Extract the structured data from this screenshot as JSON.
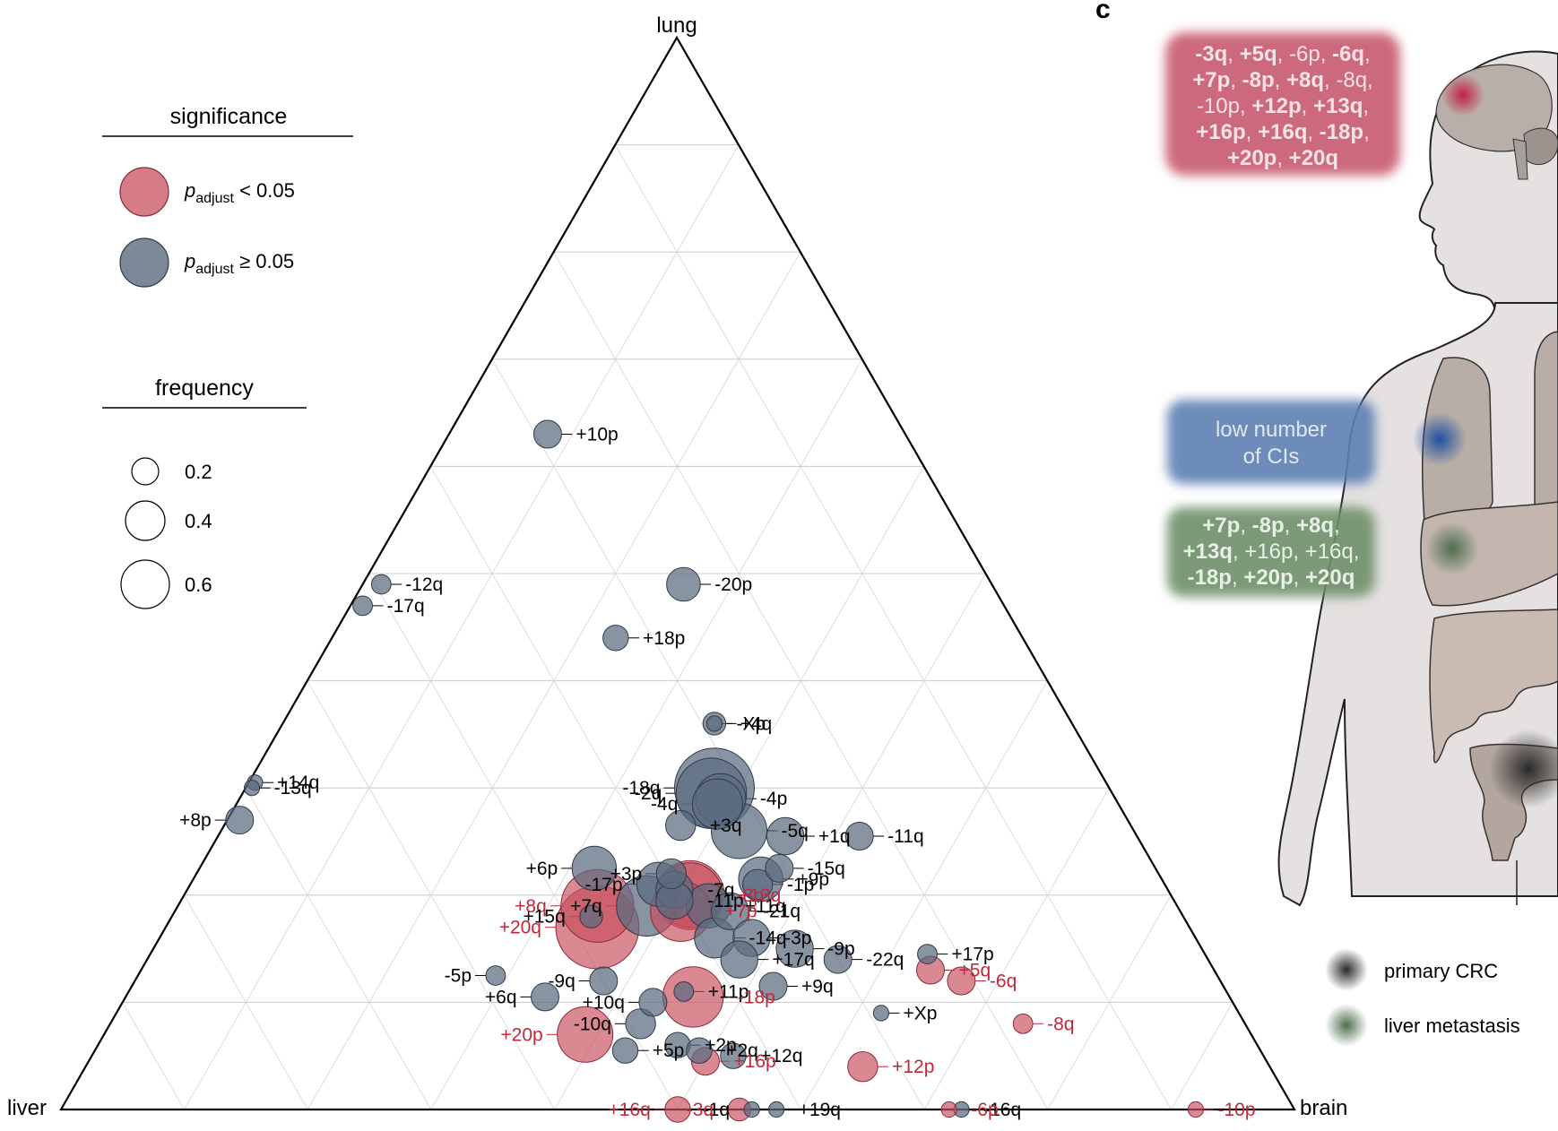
{
  "panel_letter": "c",
  "colors": {
    "significant": "#c8505f",
    "not_significant": "#5b6b80",
    "text_red": "#c0283c",
    "brain_box": "#c44f64",
    "lung_box": "#5d7fb2",
    "liver_box": "#6f8f6a"
  },
  "legend": {
    "significance_title": "significance",
    "sig_label_p": "p",
    "sig_label_sub": "adjust",
    "sig_lt": " < 0.05",
    "sig_ge": " ≥ 0.05",
    "frequency_title": "frequency",
    "freq_values": [
      "0.2",
      "0.4",
      "0.6"
    ]
  },
  "anatomy": {
    "brain_box_lines": [
      [
        [
          "-3q",
          true
        ],
        [
          ", ",
          false
        ],
        [
          "+5q",
          true
        ],
        [
          ", -6p, ",
          false
        ],
        [
          "-6q",
          true
        ],
        [
          ",",
          false
        ]
      ],
      [
        [
          "+7p",
          true
        ],
        [
          ", ",
          false
        ],
        [
          "-8p",
          true
        ],
        [
          ", ",
          false
        ],
        [
          "+8q",
          true
        ],
        [
          ", -8q,",
          false
        ]
      ],
      [
        [
          "-10p, ",
          false
        ],
        [
          "+12p",
          true
        ],
        [
          ", ",
          false
        ],
        [
          "+13q",
          true
        ],
        [
          ",",
          false
        ]
      ],
      [
        [
          "+16p",
          true
        ],
        [
          ", ",
          false
        ],
        [
          "+16q",
          true
        ],
        [
          ", ",
          false
        ],
        [
          "-18p",
          true
        ],
        [
          ",",
          false
        ]
      ],
      [
        [
          "+20p",
          true
        ],
        [
          ", ",
          false
        ],
        [
          "+20q",
          true
        ]
      ]
    ],
    "lung_box_lines": [
      "low number",
      "of CIs"
    ],
    "liver_box_lines": [
      [
        [
          "+7p",
          true
        ],
        [
          ", ",
          false
        ],
        [
          "-8p",
          true
        ],
        [
          ", ",
          false
        ],
        [
          "+8q",
          true
        ],
        [
          ",",
          false
        ]
      ],
      [
        [
          "+13q",
          true
        ],
        [
          ", +16p, +16q,",
          false
        ]
      ],
      [
        [
          "-18p",
          true
        ],
        [
          ", ",
          false
        ],
        [
          "+20p",
          true
        ],
        [
          ", ",
          false
        ],
        [
          "+20q",
          true
        ]
      ]
    ],
    "legend_primary": "primary CRC",
    "legend_liver": "liver metastasis"
  },
  "chart_data": {
    "type": "scatter",
    "subtype": "ternary",
    "axes": {
      "top": "lung",
      "bottom_left": "liver",
      "bottom_right": "brain"
    },
    "grid": true,
    "points": [
      {
        "label": "+10p",
        "lung": 0.63,
        "brain": 0.08,
        "freq": 0.05,
        "sig": false
      },
      {
        "label": "-12q",
        "lung": 0.49,
        "brain": 0.015,
        "freq": 0.02,
        "sig": false
      },
      {
        "label": "-17q",
        "lung": 0.47,
        "brain": 0.01,
        "freq": 0.02,
        "sig": false
      },
      {
        "label": "-20p",
        "lung": 0.49,
        "brain": 0.26,
        "freq": 0.08,
        "sig": false
      },
      {
        "label": "+18p",
        "lung": 0.44,
        "brain": 0.23,
        "freq": 0.04,
        "sig": false
      },
      {
        "label": "+4q",
        "lung": 0.36,
        "brain": 0.35,
        "freq": 0.03,
        "sig": false
      },
      {
        "label": "-Xp",
        "lung": 0.36,
        "brain": 0.35,
        "freq": 0.01,
        "sig": false
      },
      {
        "label": "+14q",
        "lung": 0.305,
        "brain": 0.005,
        "freq": 0.01,
        "sig": false
      },
      {
        "label": "-13q",
        "lung": 0.3,
        "brain": 0.005,
        "freq": 0.01,
        "sig": false
      },
      {
        "label": "+8p",
        "lung": 0.27,
        "brain": 0.01,
        "freq": 0.05,
        "sig": false
      },
      {
        "label": "-18q",
        "lung": 0.3,
        "brain": 0.38,
        "freq": 0.55,
        "sig": false
      },
      {
        "label": "-2q",
        "lung": 0.295,
        "brain": 0.38,
        "freq": 0.42,
        "sig": false
      },
      {
        "label": "-4p",
        "lung": 0.29,
        "brain": 0.39,
        "freq": 0.2,
        "sig": false
      },
      {
        "label": "-4q",
        "lung": 0.285,
        "brain": 0.39,
        "freq": 0.2,
        "sig": false
      },
      {
        "label": "+3q",
        "lung": 0.265,
        "brain": 0.37,
        "freq": 0.06,
        "sig": false
      },
      {
        "label": "-5q",
        "lung": 0.26,
        "brain": 0.42,
        "freq": 0.25,
        "sig": false
      },
      {
        "label": "+1q",
        "lung": 0.255,
        "brain": 0.46,
        "freq": 0.1,
        "sig": false
      },
      {
        "label": "-11q",
        "lung": 0.255,
        "brain": 0.52,
        "freq": 0.05,
        "sig": false
      },
      {
        "label": "-15q",
        "lung": 0.225,
        "brain": 0.47,
        "freq": 0.05,
        "sig": false
      },
      {
        "label": "+9p",
        "lung": 0.215,
        "brain": 0.46,
        "freq": 0.15,
        "sig": false
      },
      {
        "label": "-1p",
        "lung": 0.21,
        "brain": 0.46,
        "freq": 0.06,
        "sig": false
      },
      {
        "label": "+6p",
        "lung": 0.225,
        "brain": 0.32,
        "freq": 0.15,
        "sig": false
      },
      {
        "label": "-17p",
        "lung": 0.21,
        "brain": 0.38,
        "freq": 0.15,
        "sig": false
      },
      {
        "label": "+3p",
        "lung": 0.22,
        "brain": 0.385,
        "freq": 0.06,
        "sig": false
      },
      {
        "label": "-7q",
        "lung": 0.205,
        "brain": 0.395,
        "freq": 0.1,
        "sig": false
      },
      {
        "label": "-11p",
        "lung": 0.195,
        "brain": 0.4,
        "freq": 0.1,
        "sig": false
      },
      {
        "label": "+11q",
        "lung": 0.19,
        "brain": 0.43,
        "freq": 0.15,
        "sig": false
      },
      {
        "label": "+7q",
        "lung": 0.19,
        "brain": 0.38,
        "freq": 0.3,
        "sig": false
      },
      {
        "label": "-21q",
        "lung": 0.185,
        "brain": 0.45,
        "freq": 0.1,
        "sig": false
      },
      {
        "label": "-3p",
        "lung": 0.16,
        "brain": 0.48,
        "freq": 0.1,
        "sig": false
      },
      {
        "label": "-14q",
        "lung": 0.16,
        "brain": 0.45,
        "freq": 0.12,
        "sig": false
      },
      {
        "label": "-9p",
        "lung": 0.15,
        "brain": 0.52,
        "freq": 0.1,
        "sig": false
      },
      {
        "label": "-22q",
        "lung": 0.14,
        "brain": 0.56,
        "freq": 0.05,
        "sig": false
      },
      {
        "label": "+17p",
        "lung": 0.145,
        "brain": 0.63,
        "freq": 0.02,
        "sig": false
      },
      {
        "label": "+17q",
        "lung": 0.14,
        "brain": 0.48,
        "freq": 0.1,
        "sig": false
      },
      {
        "label": "-5p",
        "lung": 0.125,
        "brain": 0.29,
        "freq": 0.02,
        "sig": false
      },
      {
        "label": "-9q",
        "lung": 0.12,
        "brain": 0.38,
        "freq": 0.05,
        "sig": false
      },
      {
        "label": "+9q",
        "lung": 0.115,
        "brain": 0.52,
        "freq": 0.05,
        "sig": false
      },
      {
        "label": "+6q",
        "lung": 0.105,
        "brain": 0.34,
        "freq": 0.05,
        "sig": false
      },
      {
        "label": "+10q",
        "lung": 0.1,
        "brain": 0.43,
        "freq": 0.05,
        "sig": false
      },
      {
        "label": "+11p",
        "lung": 0.11,
        "brain": 0.45,
        "freq": 0.02,
        "sig": false
      },
      {
        "label": "-10q",
        "lung": 0.08,
        "brain": 0.43,
        "freq": 0.06,
        "sig": false
      },
      {
        "label": "+Xp",
        "lung": 0.09,
        "brain": 0.62,
        "freq": 0.01,
        "sig": false
      },
      {
        "label": "+5p",
        "lung": 0.055,
        "brain": 0.43,
        "freq": 0.04,
        "sig": false
      },
      {
        "label": "+2p",
        "lung": 0.06,
        "brain": 0.47,
        "freq": 0.04,
        "sig": false
      },
      {
        "label": "+12q",
        "lung": 0.05,
        "brain": 0.52,
        "freq": 0.04,
        "sig": false
      },
      {
        "label": "+2q",
        "lung": 0.055,
        "brain": 0.49,
        "freq": 0.04,
        "sig": false
      },
      {
        "label": "-1q",
        "lung": 0.0,
        "brain": 0.56,
        "freq": 0.01,
        "sig": false
      },
      {
        "label": "+19q",
        "lung": 0.0,
        "brain": 0.58,
        "freq": 0.01,
        "sig": false
      },
      {
        "label": "-16q",
        "lung": 0.0,
        "brain": 0.73,
        "freq": 0.01,
        "sig": false
      },
      {
        "label": "+8q",
        "lung": 0.19,
        "brain": 0.34,
        "freq": 0.45,
        "sig": true
      },
      {
        "label": "+15q",
        "lung": 0.18,
        "brain": 0.34,
        "freq": 0.03,
        "sig": false
      },
      {
        "label": "+20q",
        "lung": 0.17,
        "brain": 0.35,
        "freq": 0.6,
        "sig": true
      },
      {
        "label": "+13q",
        "lung": 0.2,
        "brain": 0.41,
        "freq": 0.4,
        "sig": true
      },
      {
        "label": "+7p",
        "lung": 0.185,
        "brain": 0.41,
        "freq": 0.3,
        "sig": true
      },
      {
        "label": "-8p",
        "lung": 0.2,
        "brain": 0.41,
        "freq": 0.35,
        "sig": true
      },
      {
        "label": "-18p",
        "lung": 0.105,
        "brain": 0.46,
        "freq": 0.3,
        "sig": true
      },
      {
        "label": "+20p",
        "lung": 0.07,
        "brain": 0.39,
        "freq": 0.25,
        "sig": true
      },
      {
        "label": "+16p",
        "lung": 0.045,
        "brain": 0.5,
        "freq": 0.05,
        "sig": true
      },
      {
        "label": "+16q",
        "lung": 0.0,
        "brain": 0.5,
        "freq": 0.04,
        "sig": true
      },
      {
        "label": "-3q",
        "lung": 0.0,
        "brain": 0.55,
        "freq": 0.03,
        "sig": true
      },
      {
        "label": "+5q",
        "lung": 0.13,
        "brain": 0.64,
        "freq": 0.05,
        "sig": true
      },
      {
        "label": "-6q",
        "lung": 0.12,
        "brain": 0.67,
        "freq": 0.05,
        "sig": true
      },
      {
        "label": "-8q",
        "lung": 0.08,
        "brain": 0.74,
        "freq": 0.02,
        "sig": true
      },
      {
        "label": "+12p",
        "lung": 0.04,
        "brain": 0.63,
        "freq": 0.06,
        "sig": true
      },
      {
        "label": "-6p",
        "lung": 0.0,
        "brain": 0.72,
        "freq": 0.01,
        "sig": true
      },
      {
        "label": "-10p",
        "lung": 0.0,
        "brain": 0.92,
        "freq": 0.01,
        "sig": true
      }
    ]
  }
}
